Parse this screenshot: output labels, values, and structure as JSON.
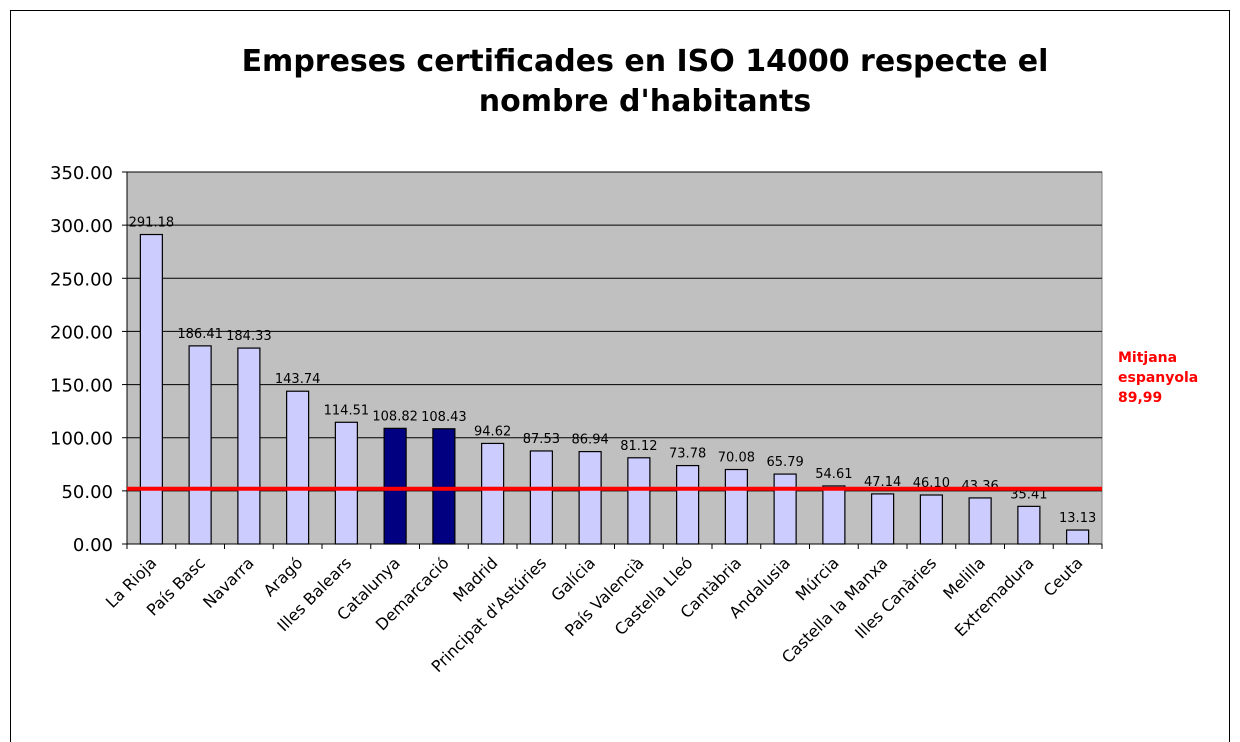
{
  "chart_data": {
    "type": "bar",
    "title": "Empreses certificades en ISO 14000 respecte el nombre d'habitants",
    "categories": [
      "La Rioja",
      "País Basc",
      "Navarra",
      "Aragó",
      "Illes Balears",
      "Catalunya",
      "Demarcació",
      "Madrid",
      "Principat d'Astúries",
      "Galícia",
      "País Valencià",
      "Castella Lleó",
      "Cantàbria",
      "Andalusia",
      "Múrcia",
      "Castella la Manxa",
      "Illes Canàries",
      "Melilla",
      "Extremadura",
      "Ceuta"
    ],
    "values": [
      291.18,
      186.41,
      184.33,
      143.74,
      114.51,
      108.82,
      108.43,
      94.62,
      87.53,
      86.94,
      81.12,
      73.78,
      70.08,
      65.79,
      54.61,
      47.14,
      46.1,
      43.36,
      35.41,
      13.13
    ],
    "value_labels": [
      "291.18",
      "186.41",
      "184.33",
      "143.74",
      "114.51",
      "108.82",
      "108.43",
      "94.62",
      "87.53",
      "86.94",
      "81.12",
      "73.78",
      "70.08",
      "65.79",
      "54.61",
      "47.14",
      "46.10",
      "43.36",
      "35.41",
      "13.13"
    ],
    "colors": [
      "#ccccff",
      "#ccccff",
      "#ccccff",
      "#ccccff",
      "#ccccff",
      "#000080",
      "#000080",
      "#ccccff",
      "#ccccff",
      "#ccccff",
      "#ccccff",
      "#ccccff",
      "#ccccff",
      "#ccccff",
      "#ccccff",
      "#ccccff",
      "#ccccff",
      "#ccccff",
      "#ccccff",
      "#ccccff"
    ],
    "ylim": [
      0,
      350
    ],
    "yticks": [
      {
        "value": 0,
        "label": "0.00"
      },
      {
        "value": 50,
        "label": "50.00"
      },
      {
        "value": 100,
        "label": "100.00"
      },
      {
        "value": 150,
        "label": "150.00"
      },
      {
        "value": 200,
        "label": "200.00"
      },
      {
        "value": 250,
        "label": "250.00"
      },
      {
        "value": 300,
        "label": "300.00"
      },
      {
        "value": 350,
        "label": "350.00"
      }
    ],
    "grid": true,
    "reference_line": {
      "value": 52,
      "color": "#ff0000"
    },
    "annotation": "Mitjana espanyola 89,99"
  }
}
